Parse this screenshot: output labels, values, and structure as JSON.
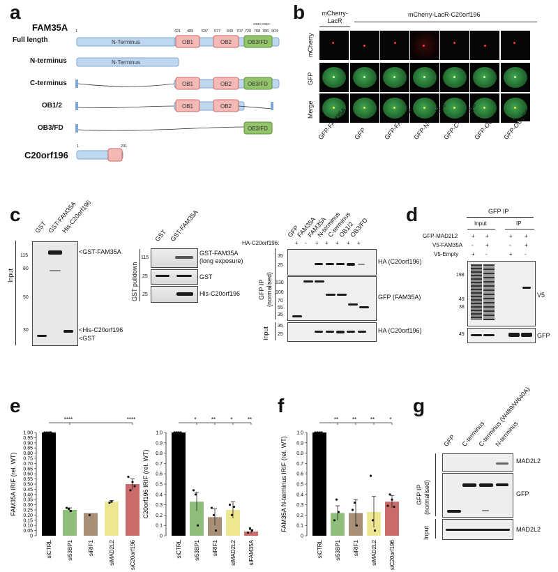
{
  "panel_a": {
    "label": "a",
    "protein": "FAM35A",
    "rows": [
      {
        "name": "Full length",
        "labels": [
          "N-Terminus",
          "OB1",
          "OB2",
          "OB3/FD"
        ]
      },
      {
        "name": "N-terminus",
        "labels": [
          "N-Terminus"
        ]
      },
      {
        "name": "C-terminus",
        "labels": [
          "OB1",
          "OB2",
          "OB3/FD"
        ]
      },
      {
        "name": "OB1/2",
        "labels": [
          "OB1",
          "OB2"
        ]
      },
      {
        "name": "OB3/FD",
        "labels": [
          "OB3/FD"
        ]
      }
    ],
    "ticks": [
      "1",
      "421",
      "489",
      "537",
      "577",
      "640",
      "707",
      "720",
      "768",
      "786",
      "904"
    ],
    "small_ticks": [
      "C93C",
      "C96C"
    ],
    "c20_title": "C20orf196",
    "c20_tick_start": "1",
    "c20_tick_end": "201"
  },
  "panel_b": {
    "label": "b",
    "header_left": "mCherry-LacR",
    "header_right": "mCherry-LacR-C20orf196",
    "rows": [
      "mCherry",
      "GFP",
      "Merge"
    ],
    "columns": [
      "GFP-FAM35A",
      "GFP",
      "GFP-FAM35A",
      "GFP-N-terminus",
      "GFP-C-terminus",
      "GFP-OB1/2",
      "GFP-OB3/FD"
    ]
  },
  "panel_c": {
    "label": "c",
    "blot1": {
      "lanes": [
        "GST",
        "GST-FAM35A",
        "His-C20orf196"
      ],
      "side": "Input",
      "mw": [
        "115",
        "80",
        "50",
        "30"
      ],
      "right": [
        "<GST-FAM35A",
        "<His-C20orf196",
        "<GST"
      ]
    },
    "blot2": {
      "lanes": [
        "GST",
        "GST-FAM35A"
      ],
      "side": "GST pulldown",
      "mw": [
        "115",
        "25",
        "25"
      ],
      "right": [
        "GST-FAM35A",
        "(long exposure)",
        "GST",
        "His-C20orf196"
      ]
    },
    "blot3": {
      "lanes": [
        "GFP",
        "FAM35A",
        "FAM35A",
        "N-terminus",
        "C-terminus",
        "OB1/2",
        "OB3/FD"
      ],
      "ha_label": "HA-C20orf196:",
      "signs": [
        "+",
        "-",
        "+",
        "+",
        "+",
        "+",
        "+"
      ],
      "side_top": "GFP IP",
      "side_top2": "(normalised)",
      "side_bottom": "Input",
      "mw_top": [
        "35",
        "25"
      ],
      "mw_mid": [
        "130",
        "100",
        "70",
        "55",
        "35"
      ],
      "mw_bot": [
        "35",
        "25"
      ],
      "right": [
        "HA (C20orf196)",
        "GFP (FAM35A)",
        "HA (C20orf196)"
      ]
    }
  },
  "panel_d": {
    "label": "d",
    "title": "GFP IP",
    "col_input": "Input",
    "col_ip": "IP",
    "rows": [
      {
        "name": "GFP-MAD2L2",
        "signs": [
          "+",
          "+",
          "+",
          "+"
        ]
      },
      {
        "name": "V5-FAM35A",
        "signs": [
          "-",
          "+",
          "-",
          "+"
        ]
      },
      {
        "name": "V5-Empty",
        "signs": [
          "+",
          "-",
          "+",
          "-"
        ]
      }
    ],
    "mw": [
      "198",
      "49",
      "38",
      "49"
    ],
    "right": [
      "V5",
      "GFP"
    ]
  },
  "panel_e": {
    "label": "e",
    "sig1": [
      "****",
      "****"
    ],
    "sig2": [
      "*",
      "**",
      "*",
      "**"
    ]
  },
  "panel_f": {
    "label": "f",
    "sig": [
      "**",
      "**",
      "**",
      "*"
    ]
  },
  "panel_g": {
    "label": "g",
    "lanes": [
      "GFP",
      "C-terminus",
      "C-terminus (W489/W640A)",
      "N-terminus"
    ],
    "side_top": "GFP IP",
    "side_top2": "(normalised)",
    "side_bottom": "Input",
    "right": [
      "MAD2L2",
      "GFP",
      "MAD2L2"
    ]
  },
  "chart_data": [
    {
      "type": "bar",
      "ylabel": "FAM35A IRIF (rel. WT)",
      "categories": [
        "siCTRL",
        "si53BP1",
        "siRIF1",
        "siMAD2L2",
        "siC20orf196"
      ],
      "values": [
        1.0,
        0.25,
        0.22,
        0.33,
        0.5
      ],
      "errors": [
        0,
        0.02,
        0,
        0.01,
        0.05
      ],
      "colors": [
        "#000000",
        "#6aa84f",
        "#8b6a4b",
        "#e8df6c",
        "#b83a3a"
      ],
      "ylim": [
        0,
        1.0
      ],
      "yticks": [
        "0",
        "0.05",
        "0.10",
        "0.15",
        "0.20",
        "0.25",
        "0.30",
        "0.35",
        "0.40",
        "0.45",
        "0.50",
        "0.55",
        "0.60",
        "0.65",
        "0.70",
        "0.75",
        "0.80",
        "0.85",
        "0.90",
        "0.95",
        "1.00"
      ]
    },
    {
      "type": "bar",
      "ylabel": "C20orf196 IRIF (rel. WT)",
      "categories": [
        "siCTRL",
        "si53BP1",
        "siRIF1",
        "siMAD2L2",
        "siFAM35A"
      ],
      "values": [
        1.0,
        0.33,
        0.18,
        0.25,
        0.04
      ],
      "errors": [
        0,
        0.09,
        0.08,
        0.08,
        0.02
      ],
      "colors": [
        "#000000",
        "#6aa84f",
        "#8b6a4b",
        "#e8df6c",
        "#b83a3a"
      ],
      "ylim": [
        0,
        1.0
      ],
      "yticks": [
        "0",
        "0.1",
        "0.2",
        "0.3",
        "0.4",
        "0.5",
        "0.6",
        "0.7",
        "0.8",
        "0.9",
        "1.0"
      ]
    },
    {
      "type": "bar",
      "ylabel": "FAM35A N-terminus IRIF (rel. WT)",
      "categories": [
        "siCTRL",
        "si53BP1",
        "siRIF1",
        "siMAD2L2",
        "siC20orf196"
      ],
      "values": [
        1.0,
        0.22,
        0.22,
        0.23,
        0.33
      ],
      "errors": [
        0,
        0.07,
        0.13,
        0.15,
        0.06
      ],
      "colors": [
        "#000000",
        "#6aa84f",
        "#8b6a4b",
        "#e8df6c",
        "#b83a3a"
      ],
      "ylim": [
        0,
        1.0
      ],
      "yticks": [
        "0",
        "0.1",
        "0.2",
        "0.3",
        "0.4",
        "0.5",
        "0.6",
        "0.7",
        "0.8",
        "0.9",
        "1.0"
      ]
    }
  ]
}
